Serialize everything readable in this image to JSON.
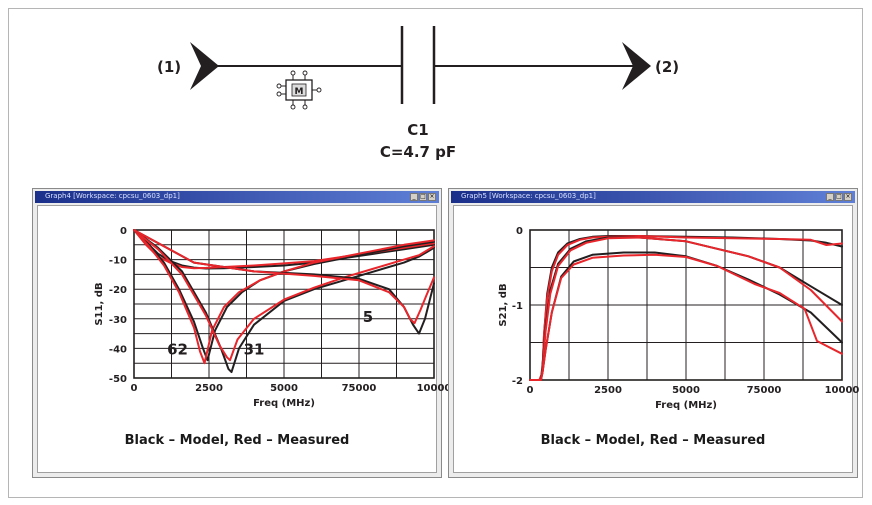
{
  "schematic": {
    "port1_label": "(1)",
    "port2_label": "(2)",
    "component_ref": "C1",
    "component_value": "C=4.7 pF",
    "model_icon_letter": "M"
  },
  "windows": [
    {
      "title": "Graph4 [Workspace: cpcsu_0603_dp1]",
      "controls": [
        "_",
        "□",
        "×"
      ]
    },
    {
      "title": "Graph5 [Workspace: cpcsu_0603_dp1]",
      "controls": [
        "_",
        "□",
        "×"
      ]
    }
  ],
  "chart_data": [
    {
      "type": "line",
      "xlabel": "Freq (MHz)",
      "ylabel": "S11, dB",
      "xticks": [
        "0",
        "2500",
        "5000",
        "75000",
        "10000"
      ],
      "yticks": [
        "0",
        "-10",
        "-20",
        "-30",
        "-40",
        "-50"
      ],
      "xlim": [
        0,
        10000
      ],
      "ylim": [
        -50,
        0
      ],
      "grid": true,
      "caption": "Black – Model, Red – Measured",
      "annotations": [
        {
          "text": "62",
          "x": 1450,
          "y": -42
        },
        {
          "text": "31",
          "x": 4000,
          "y": -42
        },
        {
          "text": "5",
          "x": 7800,
          "y": -31
        }
      ],
      "series": [
        {
          "color": "#231f20",
          "x": [
            0,
            400,
            800,
            1200,
            1600,
            2000,
            2400,
            3000,
            4000,
            5000,
            6000,
            7000,
            8000,
            9000,
            10000
          ],
          "values": [
            0,
            -4,
            -8,
            -10.5,
            -12,
            -12.7,
            -13,
            -12.9,
            -12.5,
            -12,
            -11,
            -9.5,
            -8,
            -6.5,
            -5
          ]
        },
        {
          "color": "#e8262b",
          "x": [
            0,
            400,
            800,
            1200,
            1600,
            2000,
            2400,
            3000,
            4000,
            5000,
            6000,
            7000,
            8000,
            9000,
            10000
          ],
          "values": [
            0,
            -5,
            -9,
            -11,
            -12.5,
            -12.9,
            -12.8,
            -12.5,
            -12,
            -11.3,
            -10.5,
            -9,
            -7.5,
            -6,
            -4.5
          ]
        },
        {
          "color": "#231f20",
          "x": [
            0,
            500,
            1000,
            1500,
            2000,
            2300,
            2450,
            2700,
            3100,
            3600,
            4200,
            5000,
            6000,
            7000,
            8000,
            9000,
            10000
          ],
          "values": [
            0,
            -5,
            -11,
            -20,
            -31,
            -40,
            -44,
            -34,
            -26,
            -21,
            -17,
            -14,
            -11.5,
            -9.5,
            -7.5,
            -5.5,
            -4
          ]
        },
        {
          "color": "#e8262b",
          "x": [
            0,
            500,
            1000,
            1500,
            2000,
            2200,
            2350,
            2600,
            3000,
            3500,
            4200,
            5000,
            6000,
            7000,
            8000,
            9000,
            10000
          ],
          "values": [
            0,
            -5.5,
            -12,
            -21,
            -33,
            -41,
            -45,
            -34,
            -26,
            -21,
            -17,
            -14,
            -11,
            -9,
            -7,
            -5,
            -3.5
          ]
        },
        {
          "color": "#231f20",
          "x": [
            0,
            800,
            1600,
            2400,
            2900,
            3150,
            3250,
            3500,
            4000,
            5000,
            6000,
            7000,
            8000,
            9000,
            9500,
            9750,
            10000
          ],
          "values": [
            0,
            -6,
            -14,
            -28,
            -40,
            -47,
            -48,
            -40,
            -32,
            -24,
            -20,
            -17,
            -14,
            -11,
            -9,
            -7.5,
            -6
          ]
        },
        {
          "color": "#e8262b",
          "x": [
            0,
            800,
            1600,
            2400,
            2850,
            3100,
            3200,
            3450,
            4000,
            5000,
            6000,
            7000,
            8000,
            9000,
            9500,
            9750,
            10000
          ],
          "values": [
            0,
            -6.5,
            -15,
            -29,
            -39,
            -43,
            -44,
            -37,
            -30,
            -23.5,
            -19.5,
            -16,
            -13,
            -10,
            -8.5,
            -7,
            -5.5
          ]
        },
        {
          "color": "#231f20",
          "x": [
            0,
            2000,
            4000,
            6000,
            7500,
            8500,
            9000,
            9300,
            9500,
            9700,
            9850,
            10000
          ],
          "values": [
            0,
            -11,
            -14,
            -15,
            -16.5,
            -20,
            -26,
            -32,
            -35,
            -30,
            -24,
            -18
          ]
        },
        {
          "color": "#e8262b",
          "x": [
            0,
            2000,
            4000,
            6000,
            7500,
            8500,
            9000,
            9200,
            9350,
            9550,
            9750,
            10000
          ],
          "values": [
            0,
            -11,
            -14,
            -15.5,
            -17,
            -21,
            -26,
            -30,
            -31.5,
            -27,
            -22,
            -16
          ]
        }
      ]
    },
    {
      "type": "line",
      "xlabel": "Freq (MHz)",
      "ylabel": "S21, dB",
      "xticks": [
        "0",
        "2500",
        "5000",
        "75000",
        "10000"
      ],
      "yticks": [
        "0",
        "-1",
        "-2"
      ],
      "xlim": [
        0,
        10000
      ],
      "ylim": [
        -2,
        0
      ],
      "grid": true,
      "caption": "Black – Model, Red – Measured",
      "series": [
        {
          "color": "#231f20",
          "x": [
            0,
            300,
            400,
            450,
            550,
            700,
            900,
            1200,
            1600,
            2000,
            2500,
            3500,
            5000,
            6500,
            8000,
            9000,
            9500,
            10000
          ],
          "values": [
            -2,
            -2,
            -1.9,
            -1.4,
            -0.85,
            -0.5,
            -0.3,
            -0.18,
            -0.12,
            -0.09,
            -0.08,
            -0.08,
            -0.09,
            -0.1,
            -0.12,
            -0.14,
            -0.17,
            -0.22
          ]
        },
        {
          "color": "#e8262b",
          "x": [
            0,
            300,
            400,
            450,
            550,
            700,
            900,
            1200,
            1600,
            2000,
            2500,
            3500,
            5000,
            6500,
            8000,
            9000,
            9500,
            10000
          ],
          "values": [
            -2,
            -2,
            -1.9,
            -1.4,
            -0.9,
            -0.55,
            -0.33,
            -0.2,
            -0.13,
            -0.1,
            -0.09,
            -0.08,
            -0.1,
            -0.11,
            -0.12,
            -0.13,
            -0.2,
            -0.18
          ]
        },
        {
          "color": "#231f20",
          "x": [
            0,
            350,
            400,
            500,
            650,
            900,
            1300,
            1800,
            2500,
            3500,
            5000,
            6000,
            7000,
            8000,
            9000,
            10000
          ],
          "values": [
            -2,
            -2,
            -1.8,
            -1.3,
            -0.8,
            -0.45,
            -0.25,
            -0.15,
            -0.1,
            -0.1,
            -0.15,
            -0.25,
            -0.35,
            -0.5,
            -0.75,
            -1.0
          ]
        },
        {
          "color": "#e8262b",
          "x": [
            0,
            350,
            400,
            500,
            650,
            900,
            1300,
            1800,
            2500,
            3500,
            5000,
            6000,
            7000,
            8000,
            9000,
            10000
          ],
          "values": [
            -2,
            -2,
            -1.85,
            -1.35,
            -0.85,
            -0.48,
            -0.27,
            -0.17,
            -0.11,
            -0.1,
            -0.15,
            -0.25,
            -0.35,
            -0.5,
            -0.8,
            -1.22
          ]
        },
        {
          "color": "#231f20",
          "x": [
            0,
            350,
            400,
            500,
            700,
            1000,
            1400,
            2000,
            3000,
            4000,
            5000,
            6000,
            7000,
            8000,
            9000,
            10000
          ],
          "values": [
            -2,
            -2,
            -1.9,
            -1.6,
            -1.1,
            -0.62,
            -0.42,
            -0.33,
            -0.3,
            -0.3,
            -0.35,
            -0.48,
            -0.66,
            -0.86,
            -1.1,
            -1.5
          ]
        },
        {
          "color": "#e8262b",
          "x": [
            0,
            350,
            400,
            500,
            700,
            1000,
            1400,
            2000,
            3000,
            4000,
            5000,
            6000,
            6600,
            7200,
            8000,
            8800,
            9200,
            10000
          ],
          "values": [
            -2,
            -2,
            -1.9,
            -1.6,
            -1.1,
            -0.64,
            -0.46,
            -0.37,
            -0.34,
            -0.33,
            -0.36,
            -0.48,
            -0.6,
            -0.72,
            -0.84,
            -1.05,
            -1.48,
            -1.65
          ]
        }
      ]
    }
  ]
}
